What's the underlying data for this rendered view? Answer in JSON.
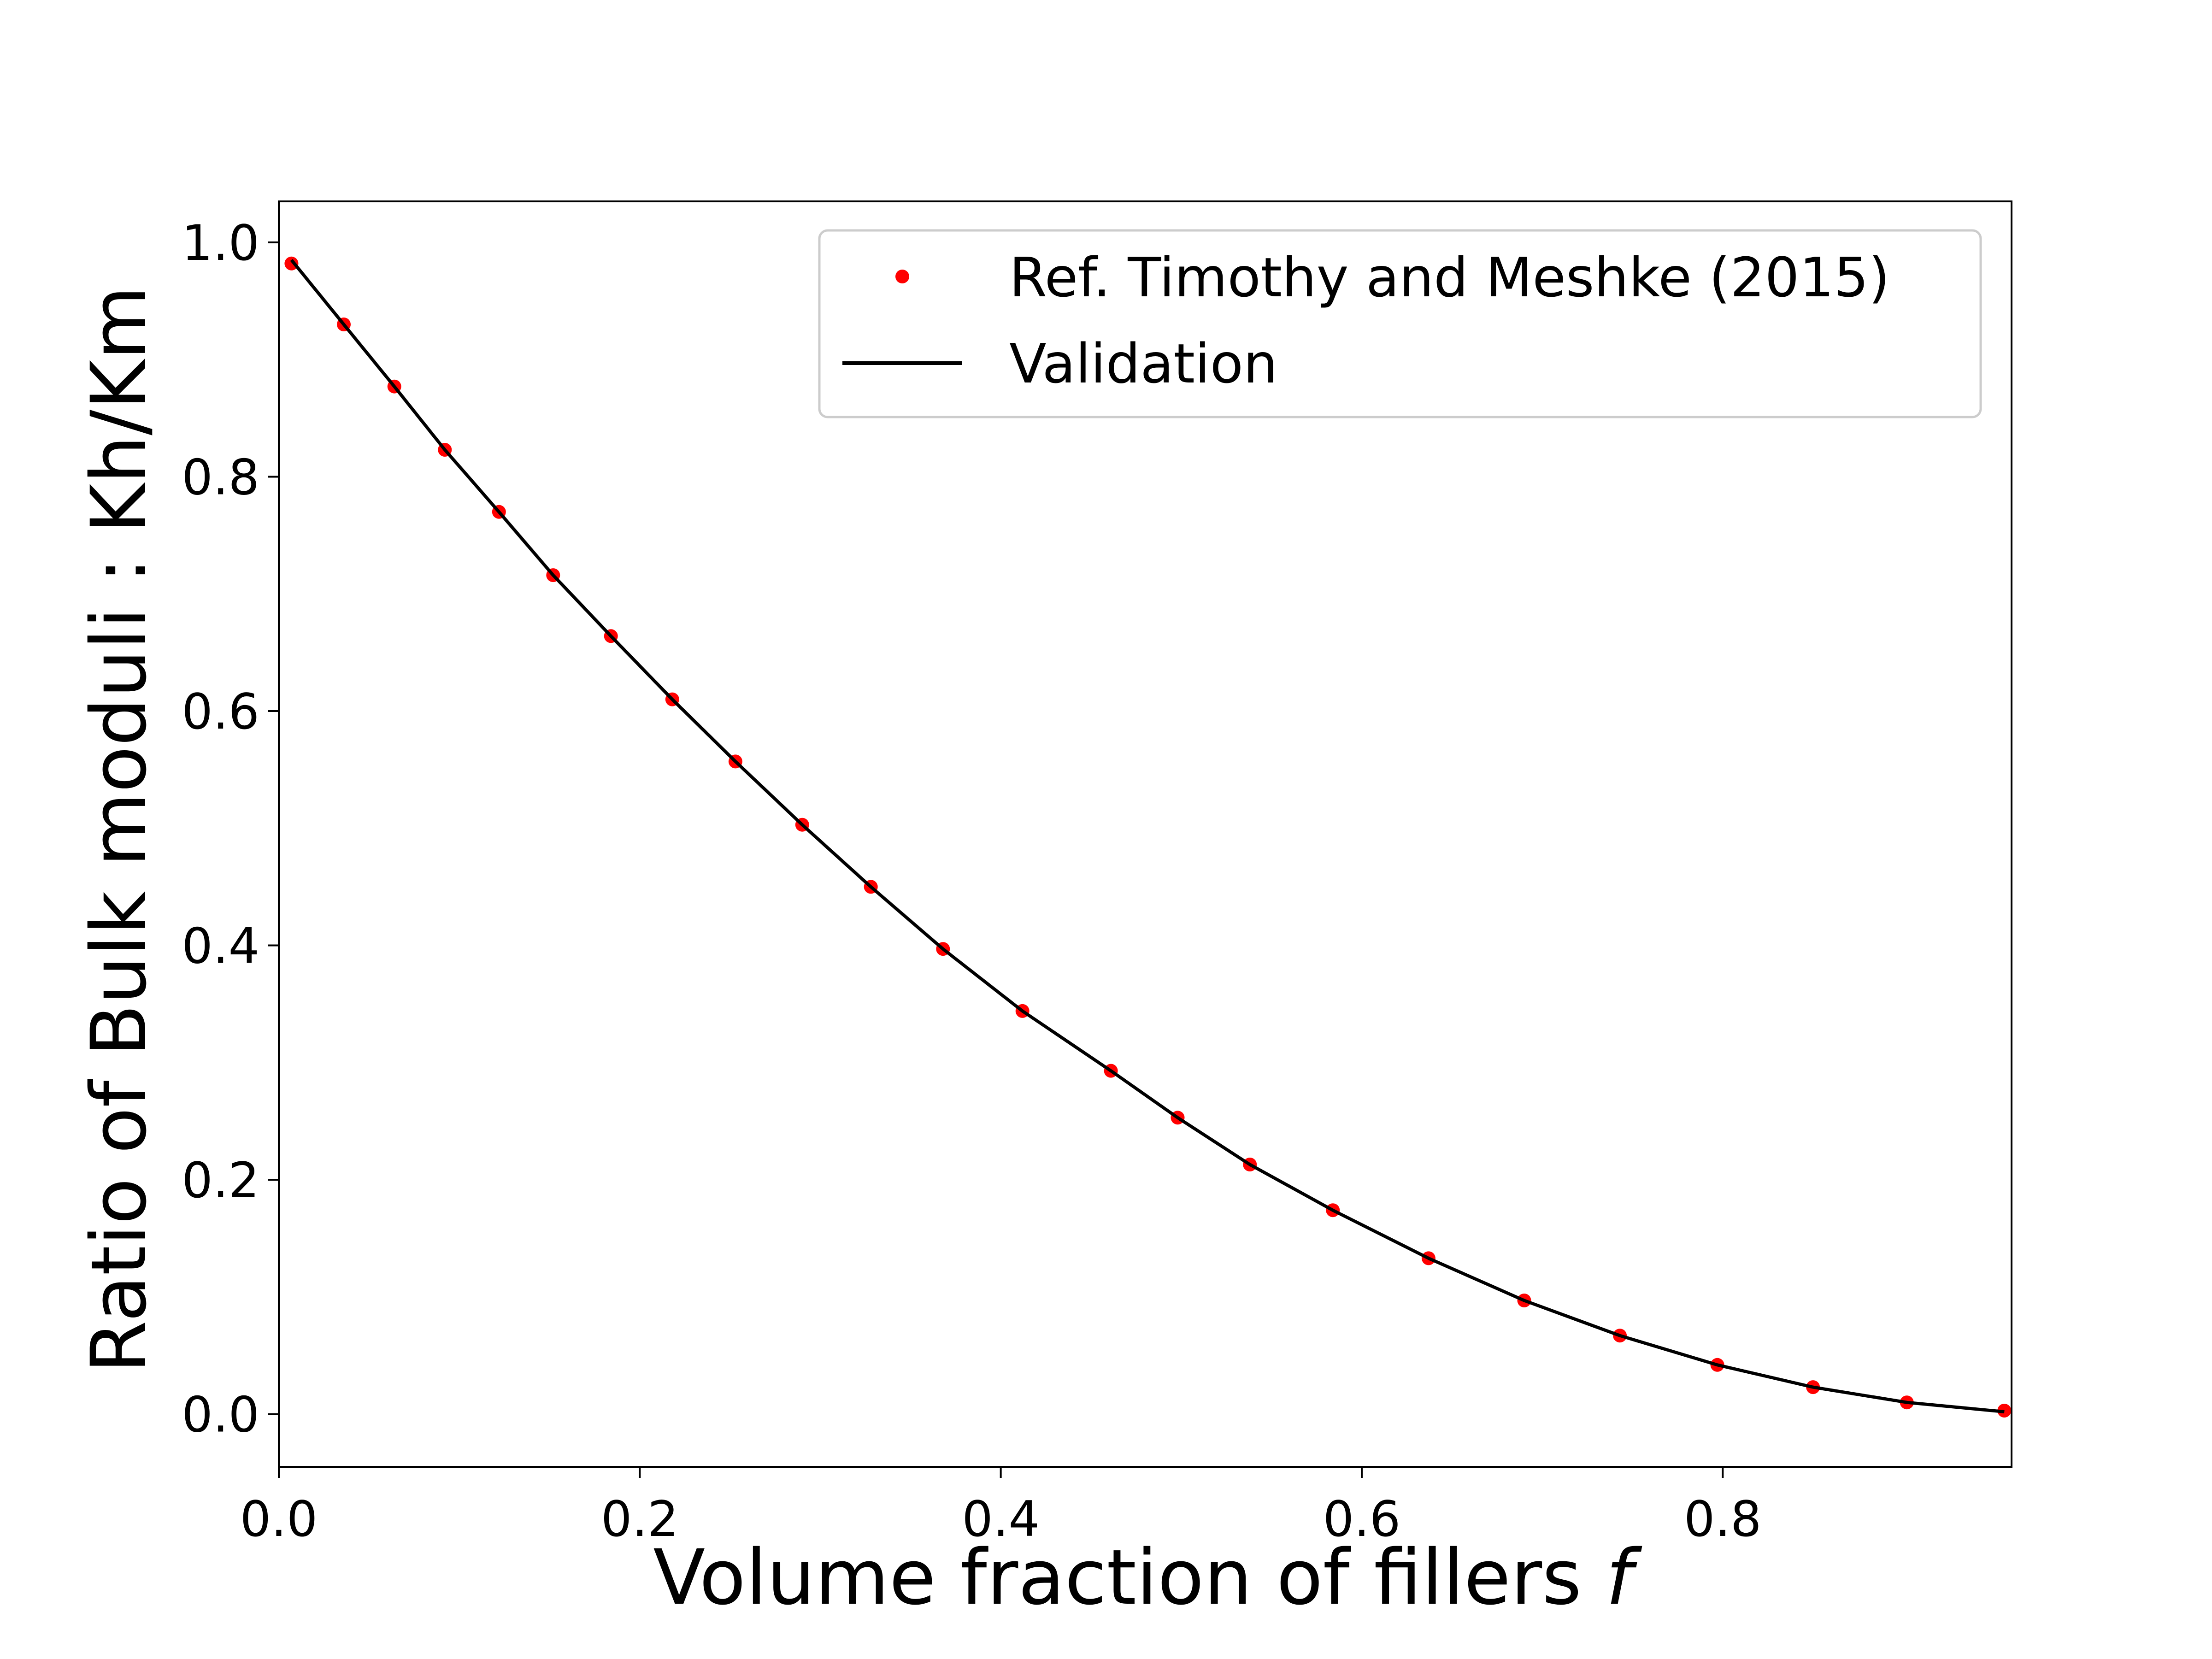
{
  "chart_data": {
    "type": "scatter",
    "title": "",
    "xlabel": "Volume fraction of fillers",
    "xlabel_symbol": "f",
    "ylabel": "Ratio of Bulk moduli : Kh/Km",
    "xlim": [
      0.0,
      0.96
    ],
    "ylim": [
      -0.045,
      1.035
    ],
    "x_ticks": [
      {
        "value": 0.0,
        "label": "0.0"
      },
      {
        "value": 0.2,
        "label": "0.2"
      },
      {
        "value": 0.4,
        "label": "0.4"
      },
      {
        "value": 0.6,
        "label": "0.6"
      },
      {
        "value": 0.8,
        "label": "0.8"
      }
    ],
    "y_ticks": [
      {
        "value": 0.0,
        "label": "0.0"
      },
      {
        "value": 0.2,
        "label": "0.2"
      },
      {
        "value": 0.4,
        "label": "0.4"
      },
      {
        "value": 0.6,
        "label": "0.6"
      },
      {
        "value": 0.8,
        "label": "0.8"
      },
      {
        "value": 1.0,
        "label": "1.0"
      }
    ],
    "grid": false,
    "legend_position": "upper-right",
    "series": [
      {
        "name": "Ref. Timothy and Meshke (2015)",
        "kind": "points",
        "color": "#ff0000",
        "x": [
          0.007,
          0.036,
          0.064,
          0.092,
          0.122,
          0.152,
          0.184,
          0.218,
          0.253,
          0.29,
          0.328,
          0.368,
          0.412,
          0.461,
          0.498,
          0.538,
          0.584,
          0.637,
          0.69,
          0.743,
          0.797,
          0.85,
          0.902,
          0.956
        ],
        "y": [
          0.982,
          0.93,
          0.877,
          0.823,
          0.77,
          0.716,
          0.664,
          0.61,
          0.557,
          0.503,
          0.45,
          0.397,
          0.344,
          0.293,
          0.253,
          0.213,
          0.174,
          0.133,
          0.097,
          0.067,
          0.042,
          0.023,
          0.01,
          0.003
        ]
      },
      {
        "name": "Validation",
        "kind": "line",
        "color": "#000000",
        "x": [
          0.007,
          0.036,
          0.064,
          0.092,
          0.122,
          0.152,
          0.184,
          0.218,
          0.253,
          0.29,
          0.328,
          0.368,
          0.412,
          0.461,
          0.498,
          0.538,
          0.584,
          0.637,
          0.69,
          0.743,
          0.797,
          0.85,
          0.902,
          0.956
        ],
        "y": [
          0.985,
          0.93,
          0.877,
          0.823,
          0.77,
          0.716,
          0.664,
          0.61,
          0.557,
          0.503,
          0.45,
          0.397,
          0.344,
          0.293,
          0.253,
          0.213,
          0.174,
          0.133,
          0.097,
          0.067,
          0.042,
          0.023,
          0.01,
          0.002
        ]
      }
    ]
  }
}
